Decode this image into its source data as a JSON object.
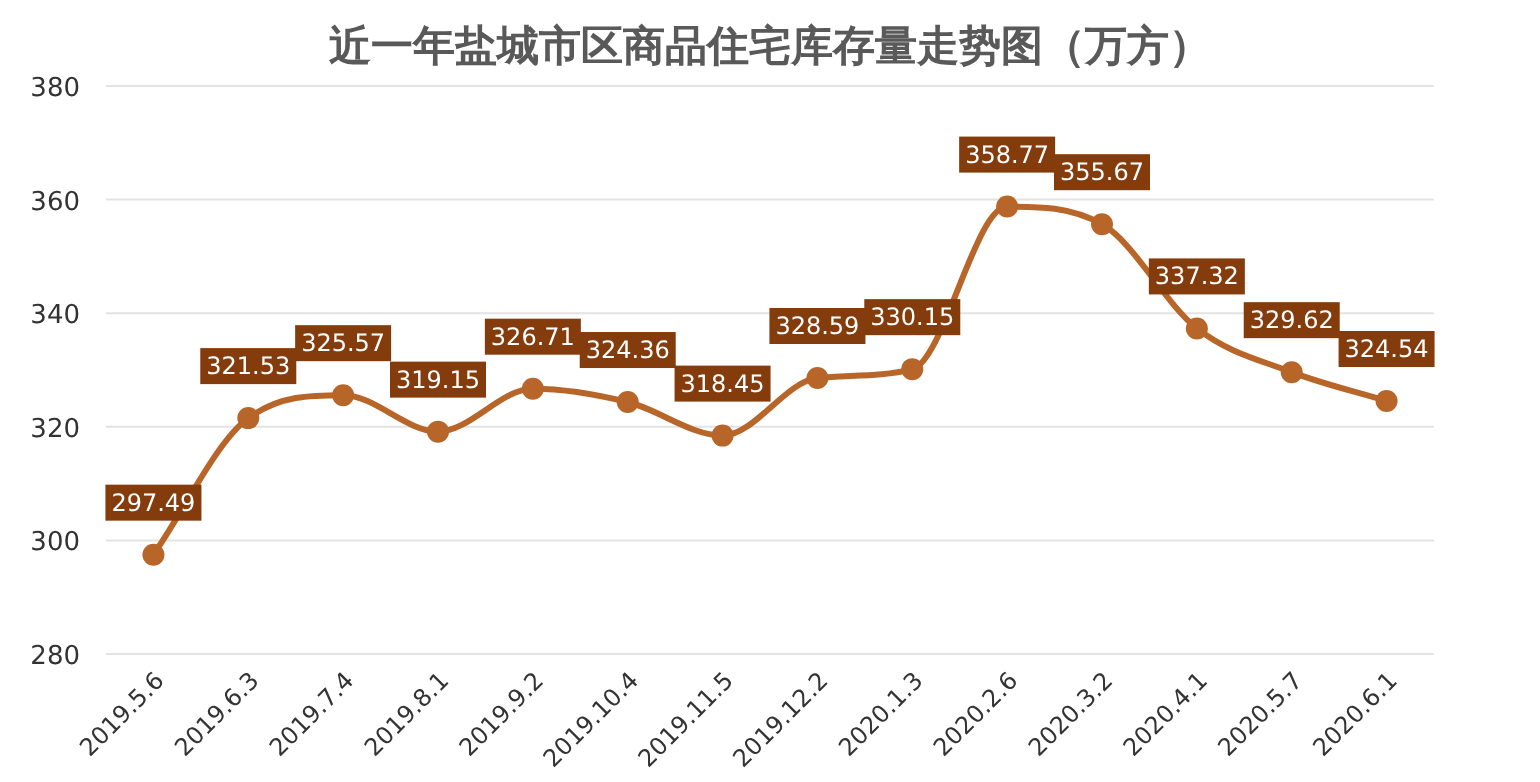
{
  "chart_data": {
    "type": "line",
    "title": "近一年盐城市区商品住宅库存量走势图（万方）",
    "categories": [
      "2019.5.6",
      "2019.6.3",
      "2019.7.4",
      "2019.8.1",
      "2019.9.2",
      "2019.10.4",
      "2019.11.5",
      "2019.12.2",
      "2020.1.3",
      "2020.2.6",
      "2020.3.2",
      "2020.4.1",
      "2020.5.7",
      "2020.6.1"
    ],
    "series": [
      {
        "color": "#b8652a",
        "values": [
          297.49,
          321.53,
          325.57,
          319.15,
          326.71,
          324.36,
          318.45,
          328.59,
          330.15,
          358.77,
          355.67,
          337.32,
          329.62,
          324.54
        ]
      }
    ],
    "ylim": [
      280,
      380
    ],
    "yticks": [
      280,
      300,
      320,
      340,
      360,
      380
    ],
    "grid": "y",
    "marker": "circle",
    "line_style": "solid",
    "data_labels": true
  }
}
